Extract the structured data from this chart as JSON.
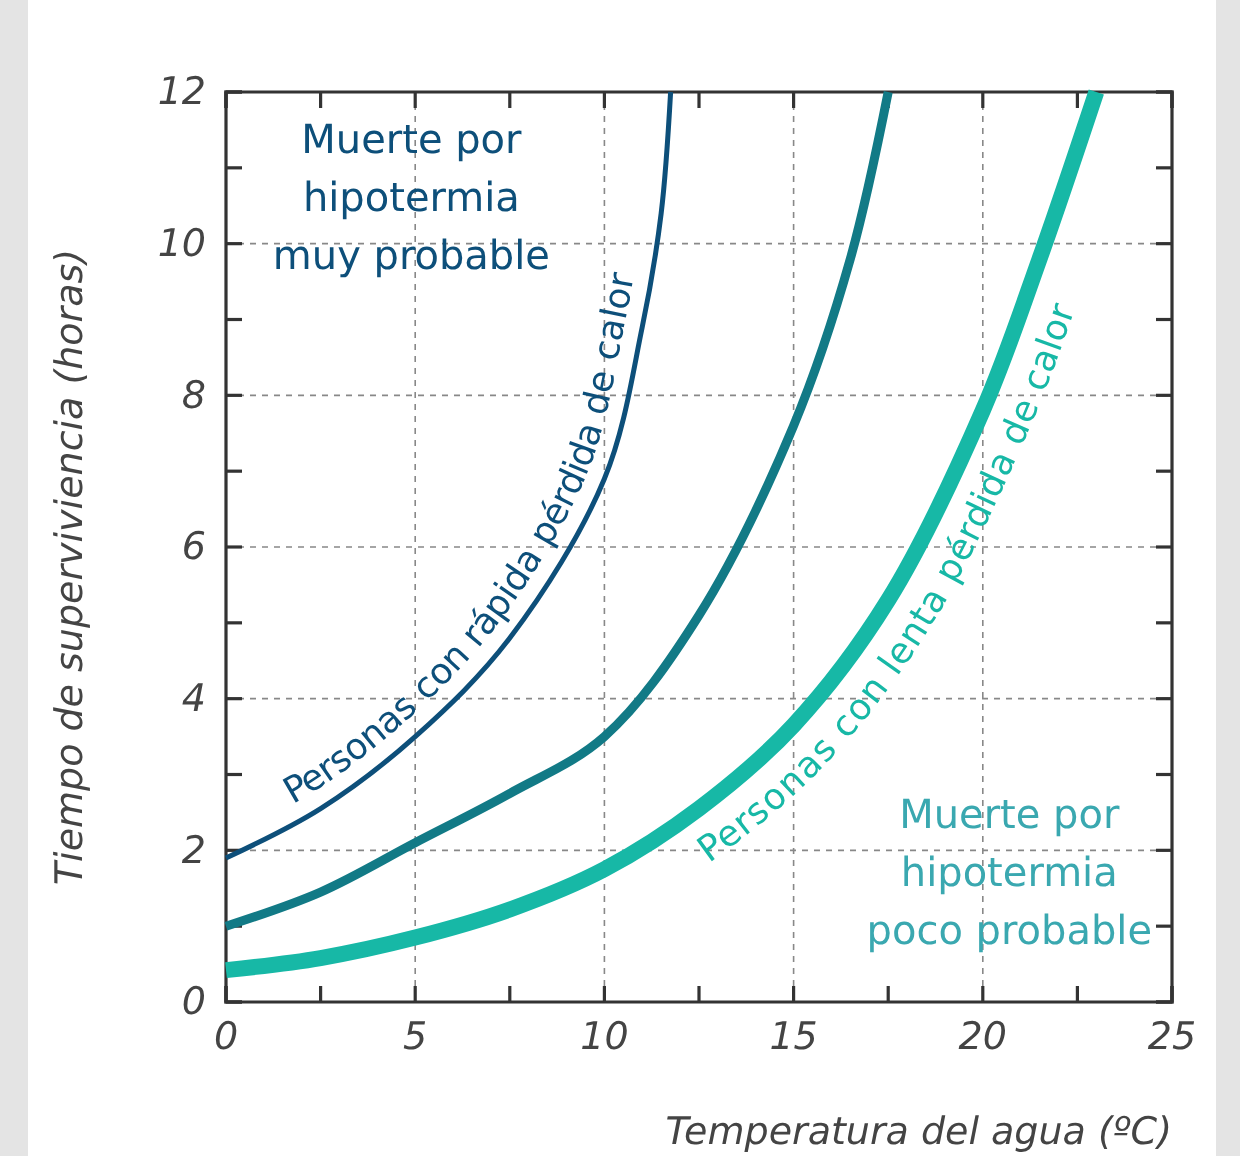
{
  "chart_data": {
    "type": "line",
    "xlabel": "Temperatura del agua (ºC)",
    "ylabel": "Tiempo de superviviencia (horas)",
    "xlim": [
      0,
      25
    ],
    "ylim": [
      0,
      12
    ],
    "xticks": [
      0,
      {
        "value": 2.5,
        "label": null
      },
      5,
      {
        "value": 7.5,
        "label": null
      },
      10,
      {
        "value": 12.5,
        "label": null
      },
      15,
      {
        "value": 17.5,
        "label": null
      },
      20,
      {
        "value": 22.5,
        "label": null
      },
      25
    ],
    "yticks": [
      0,
      {
        "value": 1,
        "label": null
      },
      2,
      {
        "value": 3,
        "label": null
      },
      4,
      {
        "value": 5,
        "label": null
      },
      6,
      {
        "value": 7,
        "label": null
      },
      8,
      {
        "value": 9,
        "label": null
      },
      10,
      {
        "value": 11,
        "label": null
      },
      12
    ],
    "grid": true,
    "marker": "none",
    "line_style": "solid",
    "series": [
      {
        "name": "Personas con rápida pérdida de calor",
        "color": "#0d4f7a",
        "x": [
          0,
          2.5,
          5,
          7.5,
          10,
          11,
          11.5,
          11.75
        ],
        "values": [
          1.9,
          2.55,
          3.5,
          4.8,
          6.9,
          8.9,
          10.4,
          12
        ]
      },
      {
        "color": "#127a86",
        "x": [
          0,
          2.5,
          5,
          7.5,
          10,
          12.5,
          15,
          16.5,
          17.5
        ],
        "values": [
          1.0,
          1.45,
          2.1,
          2.75,
          3.5,
          5.1,
          7.6,
          9.8,
          12
        ]
      },
      {
        "name": "Personas con lenta pérdida de calor",
        "color": "#17b8a6",
        "x": [
          0,
          2.5,
          5,
          7.5,
          10,
          12.5,
          15,
          17.5,
          20,
          21.5,
          23
        ],
        "values": [
          0.42,
          0.58,
          0.85,
          1.22,
          1.75,
          2.55,
          3.65,
          5.3,
          7.8,
          9.8,
          12
        ]
      }
    ],
    "annotations": [
      "Muerte por\nhipotermia\nmuy probable",
      "Muerte por\nhipotermia\npoco probable"
    ]
  }
}
